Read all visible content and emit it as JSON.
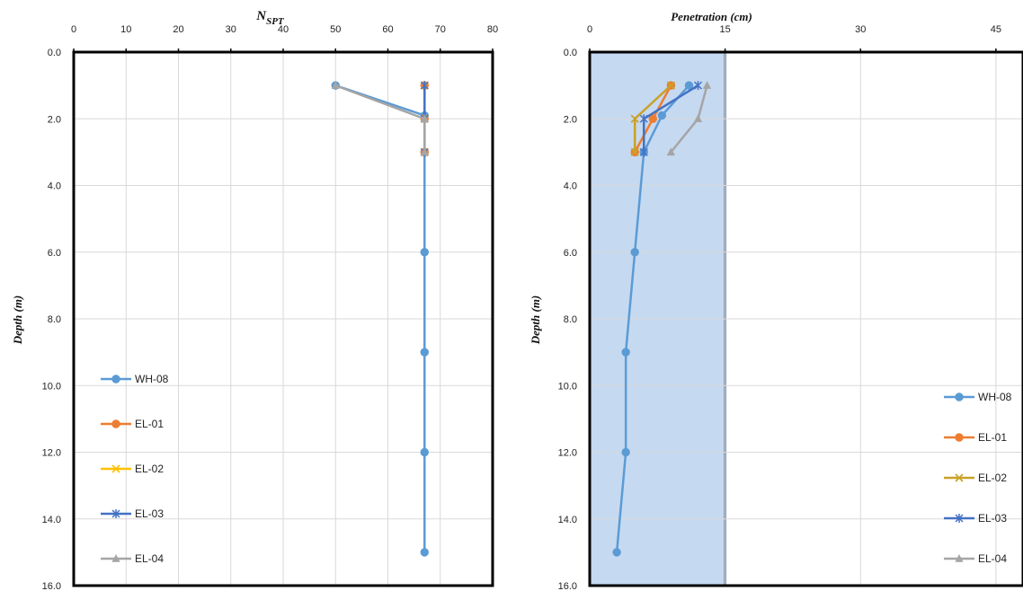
{
  "chart_data": [
    {
      "type": "line",
      "title": "",
      "xlabel": "N",
      "xlabel_sub": "SPT",
      "ylabel": "Depth (m)",
      "xlim": [
        0,
        80
      ],
      "ylim": [
        16,
        0
      ],
      "x_ticks": [
        "0",
        "10",
        "20",
        "30",
        "40",
        "50",
        "60",
        "70",
        "80"
      ],
      "y_ticks": [
        "0.0",
        "2.0",
        "4.0",
        "6.0",
        "8.0",
        "10.0",
        "12.0",
        "14.0",
        "16.0"
      ],
      "x_axis_position": "top",
      "y_axis_inverted": true,
      "grid": true,
      "legend": "bottom-left",
      "series": [
        {
          "name": "WH-08",
          "color": "#5B9BD5",
          "marker": "circle",
          "points": [
            [
              50,
              1.0
            ],
            [
              67,
              1.9
            ],
            [
              67,
              3.0
            ],
            [
              67,
              6.0
            ],
            [
              67,
              9.0
            ],
            [
              67,
              12.0
            ],
            [
              67,
              15.0
            ]
          ]
        },
        {
          "name": "EL-01",
          "color": "#ED7D31",
          "marker": "circle",
          "points": [
            [
              67,
              1.0
            ],
            [
              67,
              2.0
            ],
            [
              67,
              3.0
            ]
          ]
        },
        {
          "name": "EL-02",
          "color": "#FFC000",
          "marker": "x",
          "points": [
            [
              67,
              1.0
            ],
            [
              67,
              2.0
            ],
            [
              67,
              3.0
            ]
          ]
        },
        {
          "name": "EL-03",
          "color": "#4472C4",
          "marker": "star",
          "points": [
            [
              67,
              1.0
            ],
            [
              67,
              2.0
            ],
            [
              67,
              3.0
            ]
          ]
        },
        {
          "name": "EL-04",
          "color": "#A5A5A5",
          "marker": "triangle",
          "points": [
            [
              50,
              1.0
            ],
            [
              67,
              2.0
            ],
            [
              67,
              3.0
            ]
          ]
        }
      ]
    },
    {
      "type": "line",
      "title": "",
      "xlabel": "Penetration (cm)",
      "ylabel": "Depth (m)",
      "xlim": [
        0,
        48
      ],
      "ylim": [
        16,
        0
      ],
      "x_ticks": [
        "0",
        "15",
        "30",
        "45"
      ],
      "y_ticks": [
        "0.0",
        "2.0",
        "4.0",
        "6.0",
        "8.0",
        "10.0",
        "12.0",
        "14.0",
        "16.0"
      ],
      "x_axis_position": "top",
      "y_axis_inverted": true,
      "grid": true,
      "shaded_band": [
        0,
        15
      ],
      "legend": "bottom-right",
      "series": [
        {
          "name": "WH-08",
          "color": "#5B9BD5",
          "marker": "circle",
          "points": [
            [
              11,
              1.0
            ],
            [
              8,
              1.9
            ],
            [
              6,
              3.0
            ],
            [
              5,
              6.0
            ],
            [
              4,
              9.0
            ],
            [
              4,
              12.0
            ],
            [
              3,
              15.0
            ]
          ]
        },
        {
          "name": "EL-01",
          "color": "#ED7D31",
          "marker": "circle",
          "points": [
            [
              9,
              1.0
            ],
            [
              7,
              2.0
            ],
            [
              5,
              3.0
            ]
          ]
        },
        {
          "name": "EL-02",
          "color": "#C9A227",
          "marker": "x",
          "points": [
            [
              9,
              1.0
            ],
            [
              5,
              2.0
            ],
            [
              5,
              3.0
            ]
          ]
        },
        {
          "name": "EL-03",
          "color": "#4472C4",
          "marker": "star",
          "points": [
            [
              12,
              1.0
            ],
            [
              6,
              2.0
            ],
            [
              6,
              3.0
            ]
          ]
        },
        {
          "name": "EL-04",
          "color": "#A5A5A5",
          "marker": "triangle",
          "points": [
            [
              13,
              1.0
            ],
            [
              12,
              2.0
            ],
            [
              9,
              3.0
            ]
          ]
        }
      ]
    }
  ]
}
